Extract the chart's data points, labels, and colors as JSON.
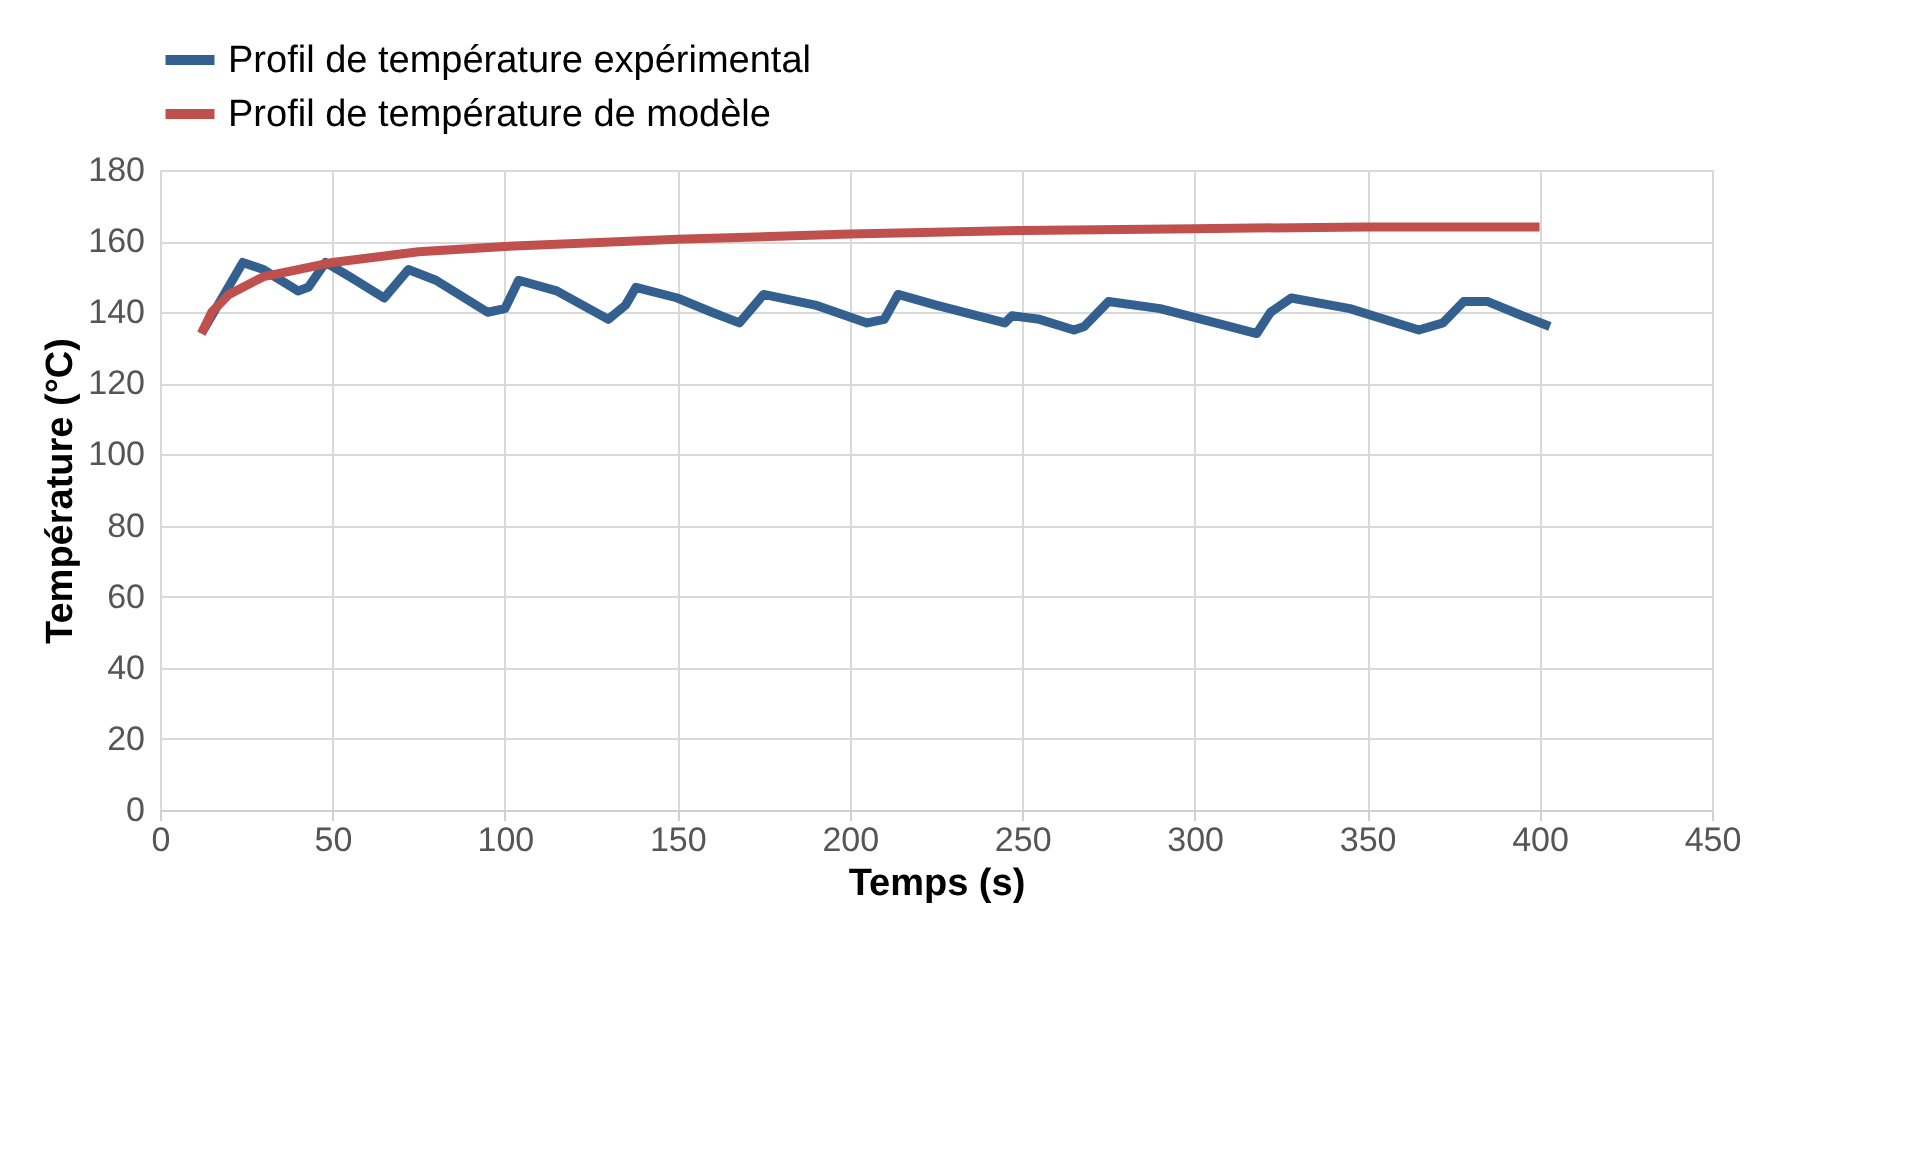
{
  "chart_data": {
    "type": "line",
    "xlabel": "Temps (s)",
    "ylabel": "Température (°C)",
    "xlim": [
      0,
      450
    ],
    "xticks": [
      0,
      50,
      100,
      150,
      200,
      250,
      300,
      350,
      400,
      450
    ],
    "ylim": [
      0,
      180
    ],
    "yticks": [
      0,
      20,
      40,
      60,
      80,
      100,
      120,
      140,
      160,
      180
    ],
    "grid": true,
    "legend": "top",
    "marker": "none",
    "line_style": "solid",
    "series": [
      {
        "name": "Profil de température expérimental",
        "color": "#34608f",
        "x": [
          12,
          24,
          30,
          40,
          43,
          48,
          55,
          65,
          72,
          80,
          95,
          100,
          104,
          115,
          130,
          135,
          138,
          150,
          160,
          168,
          175,
          190,
          205,
          210,
          214,
          225,
          245,
          247,
          255,
          265,
          268,
          275,
          290,
          310,
          318,
          322,
          328,
          345,
          365,
          372,
          378,
          385,
          395,
          403
        ],
        "values": [
          134,
          154,
          152,
          146,
          147,
          154,
          150,
          144,
          152,
          149,
          140,
          141,
          149,
          146,
          138,
          142,
          147,
          144,
          140,
          137,
          145,
          142,
          137,
          138,
          145,
          142,
          137,
          139,
          138,
          135,
          136,
          143,
          141,
          136,
          134,
          140,
          144,
          141,
          135,
          137,
          143,
          143,
          139,
          136
        ]
      },
      {
        "name": "Profil de température de modèle",
        "color": "#c0504d",
        "x": [
          12,
          15,
          20,
          30,
          40,
          50,
          75,
          100,
          150,
          200,
          250,
          300,
          350,
          400
        ],
        "values": [
          134,
          140,
          145,
          150,
          152,
          154,
          157,
          158.5,
          160.5,
          162,
          163,
          163.5,
          164,
          164
        ]
      }
    ]
  }
}
